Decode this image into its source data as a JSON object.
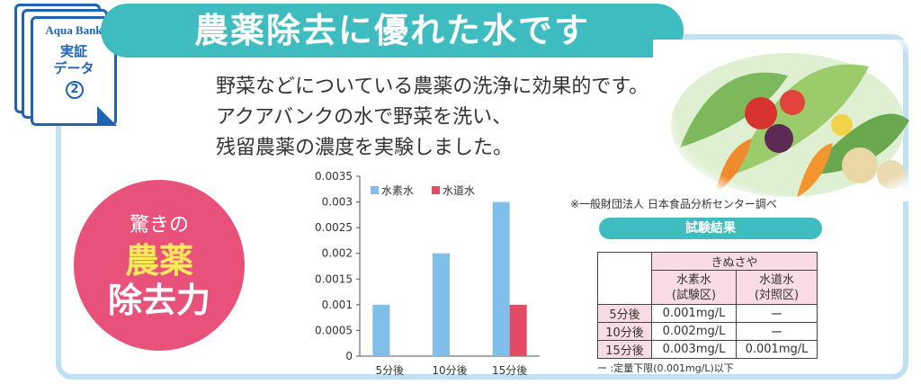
{
  "banner": {
    "title": "農薬除去に優れた水です"
  },
  "badge": {
    "logo": "Aqua Bank",
    "title_line1": "実証",
    "title_line2": "データ",
    "number": "2"
  },
  "intro": {
    "line1": "野菜などについている農薬の洗浄に効果的です。",
    "line2": "アクアバンクの水で野菜を洗い、",
    "line3": "残留農薬の濃度を実験しました。"
  },
  "circle": {
    "top": "驚きの",
    "big_line1": "農薬",
    "big_line2": "除去力"
  },
  "chart_data": {
    "type": "bar",
    "categories": [
      "5分後",
      "10分後",
      "15分後"
    ],
    "series": [
      {
        "name": "水素水",
        "values": [
          0.001,
          0.002,
          0.003
        ],
        "color": "#7fbfe9"
      },
      {
        "name": "水道水",
        "values": [
          0,
          0,
          0.001
        ],
        "color": "#e34a63"
      }
    ],
    "title": "",
    "xlabel": "",
    "ylabel": "",
    "ylim": [
      0,
      0.0035
    ],
    "yticks": [
      "0",
      "0.0005",
      "0.001",
      "0.0015",
      "0.002",
      "0.0025",
      "0.003",
      "0.0035"
    ],
    "legend": "top-left",
    "grid": false
  },
  "source_note": "※一般財団法人 日本食品分析センター調べ",
  "results_title": "試験結果",
  "table": {
    "sample": "きぬさや",
    "col1_line1": "水素水",
    "col1_line2": "(試験区)",
    "col2_line1": "水道水",
    "col2_line2": "(対照区)",
    "rows": [
      {
        "label": "5分後",
        "h2": "0.001mg/L",
        "tap": "ー"
      },
      {
        "label": "10分後",
        "h2": "0.002mg/L",
        "tap": "ー"
      },
      {
        "label": "15分後",
        "h2": "0.003mg/L",
        "tap": "0.001mg/L"
      }
    ],
    "footnote": "ー :定量下限(0.001mg/L)以下"
  },
  "colors": {
    "teal": "#3fbcbf",
    "pink": "#e8527a",
    "frame": "#bfe1f3",
    "navy": "#1f63b5"
  }
}
